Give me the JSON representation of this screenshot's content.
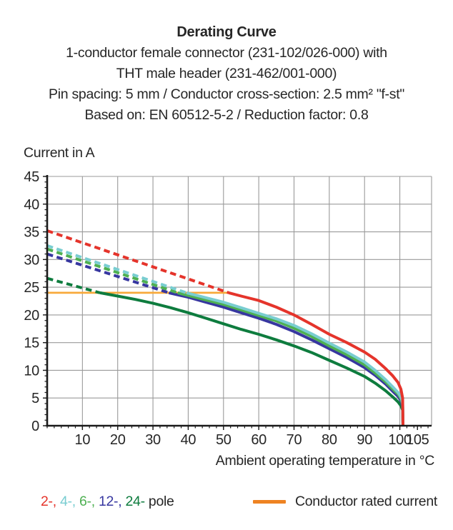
{
  "header": {
    "title": "Derating Curve",
    "subtitle_lines": [
      "1-conductor female connector (231-102/026-000) with",
      "THT male header (231-462/001-000)",
      "Pin spacing: 5 mm / Conductor cross-section: 2.5 mm² \"f-st\"",
      "Based on: EN 60512-5-2 / Reduction factor: 0.8"
    ]
  },
  "chart_data": {
    "type": "line",
    "title": "Derating Curve",
    "ylabel": "Current in A",
    "xlabel": "Ambient operating temperature in °C",
    "xlim": [
      0,
      109
    ],
    "ylim": [
      0,
      45
    ],
    "x_ticks_labeled": [
      10,
      20,
      30,
      40,
      50,
      60,
      70,
      80,
      90,
      100,
      105
    ],
    "y_ticks_labeled": [
      0,
      5,
      10,
      15,
      20,
      25,
      30,
      35,
      40,
      45
    ],
    "x_minor_step": 2,
    "y_minor_step": 1,
    "grid": true,
    "grid_color": "#9a9a9a",
    "axis_color": "#1a1a1a",
    "rated_current": {
      "label": "Conductor rated current",
      "value": 24,
      "x_start": 0,
      "x_end": 51.5,
      "color": "#f8a93a"
    },
    "series": [
      {
        "name": "24-pole",
        "color": "#0e7c3e",
        "points_dashed": [
          [
            0,
            26.6
          ],
          [
            15,
            24
          ]
        ],
        "points_solid": [
          [
            15,
            24
          ],
          [
            20,
            23.4
          ],
          [
            25,
            22.8
          ],
          [
            30,
            22.1
          ],
          [
            35,
            21.3
          ],
          [
            40,
            20.4
          ],
          [
            45,
            19.4
          ],
          [
            50,
            18.4
          ],
          [
            55,
            17.4
          ],
          [
            60,
            16.5
          ],
          [
            65,
            15.5
          ],
          [
            70,
            14.4
          ],
          [
            75,
            13.2
          ],
          [
            80,
            11.8
          ],
          [
            85,
            10.4
          ],
          [
            90,
            8.9
          ],
          [
            93,
            7.7
          ],
          [
            96,
            6.3
          ],
          [
            98,
            5.2
          ],
          [
            99.5,
            4.3
          ],
          [
            100.3,
            3.6
          ],
          [
            100.8,
            2.8
          ],
          [
            100.9,
            0
          ]
        ]
      },
      {
        "name": "12-pole",
        "color": "#3737a0",
        "points_dashed": [
          [
            0,
            31
          ],
          [
            34.5,
            24
          ]
        ],
        "points_solid": [
          [
            34.5,
            24
          ],
          [
            40,
            23.2
          ],
          [
            45,
            22.3
          ],
          [
            50,
            21.4
          ],
          [
            55,
            20.4
          ],
          [
            60,
            19.4
          ],
          [
            65,
            18.3
          ],
          [
            70,
            17
          ],
          [
            75,
            15.5
          ],
          [
            80,
            13.9
          ],
          [
            85,
            12.3
          ],
          [
            90,
            10.5
          ],
          [
            93,
            9.1
          ],
          [
            96,
            7.5
          ],
          [
            98,
            6.2
          ],
          [
            99.5,
            5.3
          ],
          [
            100.3,
            4.5
          ],
          [
            100.8,
            3.5
          ],
          [
            100.9,
            0
          ]
        ]
      },
      {
        "name": "6-pole",
        "color": "#4eb052",
        "points_dashed": [
          [
            0,
            31.9
          ],
          [
            37,
            24
          ]
        ],
        "points_solid": [
          [
            37,
            24
          ],
          [
            45,
            22.7
          ],
          [
            50,
            21.9
          ],
          [
            55,
            20.9
          ],
          [
            60,
            19.9
          ],
          [
            65,
            18.9
          ],
          [
            70,
            17.6
          ],
          [
            75,
            16.1
          ],
          [
            80,
            14.4
          ],
          [
            85,
            12.8
          ],
          [
            90,
            11
          ],
          [
            93,
            9.5
          ],
          [
            96,
            7.9
          ],
          [
            98,
            6.6
          ],
          [
            99.5,
            5.7
          ],
          [
            100.3,
            4.9
          ],
          [
            100.8,
            3.8
          ],
          [
            100.9,
            0
          ]
        ]
      },
      {
        "name": "4-pole",
        "color": "#79cdd1",
        "points_dashed": [
          [
            0,
            32.5
          ],
          [
            39.5,
            24
          ]
        ],
        "points_solid": [
          [
            39.5,
            24
          ],
          [
            45,
            23.1
          ],
          [
            50,
            22.3
          ],
          [
            55,
            21.3
          ],
          [
            60,
            20.3
          ],
          [
            65,
            19.3
          ],
          [
            70,
            18.1
          ],
          [
            75,
            16.6
          ],
          [
            80,
            14.9
          ],
          [
            85,
            13.3
          ],
          [
            90,
            11.5
          ],
          [
            93,
            10
          ],
          [
            96,
            8.3
          ],
          [
            98,
            7
          ],
          [
            99.5,
            6
          ],
          [
            100.3,
            5.2
          ],
          [
            100.8,
            4.1
          ],
          [
            100.9,
            0
          ]
        ]
      },
      {
        "name": "2-pole",
        "color": "#e5342b",
        "points_dashed": [
          [
            0,
            35.2
          ],
          [
            51.5,
            24
          ]
        ],
        "points_solid": [
          [
            51.5,
            24
          ],
          [
            55,
            23.4
          ],
          [
            60,
            22.6
          ],
          [
            65,
            21.4
          ],
          [
            70,
            20
          ],
          [
            75,
            18.3
          ],
          [
            80,
            16.5
          ],
          [
            85,
            15
          ],
          [
            90,
            13.3
          ],
          [
            93,
            12
          ],
          [
            96,
            10.3
          ],
          [
            98,
            9
          ],
          [
            99.5,
            7.8
          ],
          [
            100.3,
            6.6
          ],
          [
            100.8,
            5
          ],
          [
            100.9,
            0
          ]
        ]
      }
    ]
  },
  "legend": {
    "pole_items": [
      {
        "label": "2-",
        "color": "#e5342b"
      },
      {
        "label": "4-",
        "color": "#79cdd1"
      },
      {
        "label": "6-",
        "color": "#4eb052"
      },
      {
        "label": "12-",
        "color": "#3737a0"
      },
      {
        "label": "24-",
        "color": "#0e7c3e"
      }
    ],
    "pole_suffix": " pole",
    "rated": {
      "label": "Conductor rated current",
      "color": "#ee8322"
    }
  }
}
